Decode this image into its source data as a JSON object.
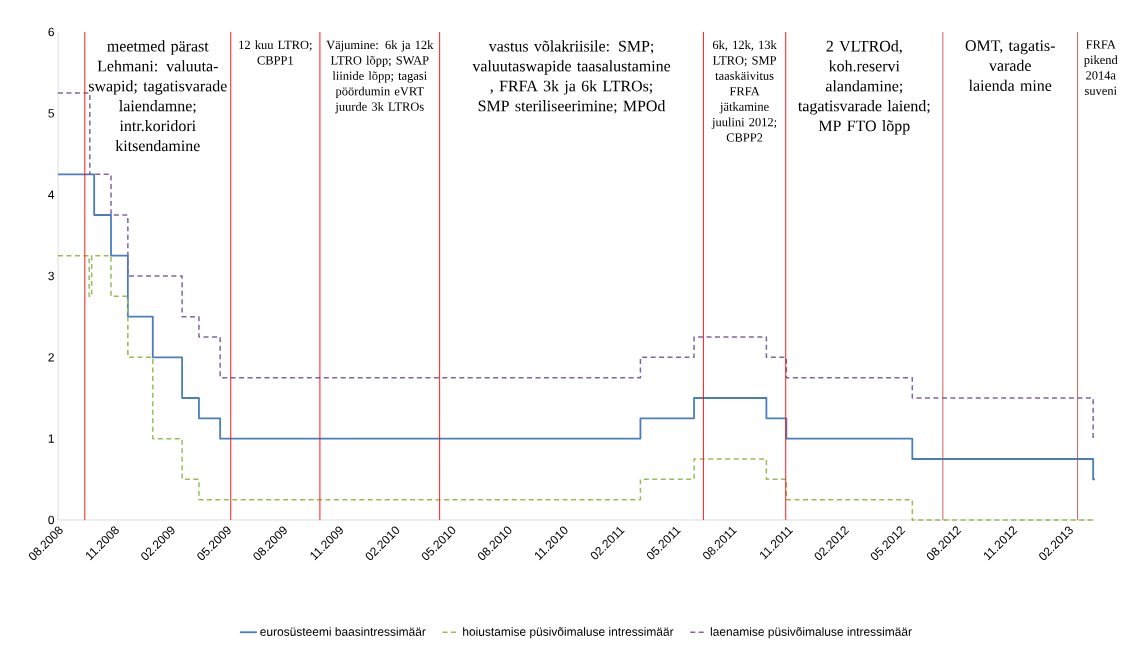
{
  "chart_data": {
    "type": "step",
    "ylim": [
      0,
      6
    ],
    "yticks": [
      0,
      1,
      2,
      3,
      4,
      5,
      6
    ],
    "xlim": [
      "2008-08-01",
      "2013-03-14"
    ],
    "xticks": [
      {
        "value": "2008-08",
        "label": "08.2008"
      },
      {
        "value": "2008-11",
        "label": "11.2008"
      },
      {
        "value": "2009-02",
        "label": "02.2009"
      },
      {
        "value": "2009-05",
        "label": "05.2009"
      },
      {
        "value": "2009-08",
        "label": "08.2009"
      },
      {
        "value": "2009-11",
        "label": "11.2009"
      },
      {
        "value": "2010-02",
        "label": "02.2010"
      },
      {
        "value": "2010-05",
        "label": "05.2010"
      },
      {
        "value": "2010-08",
        "label": "08.2010"
      },
      {
        "value": "2010-11",
        "label": "11.2010"
      },
      {
        "value": "2011-02",
        "label": "02.2011"
      },
      {
        "value": "2011-05",
        "label": "05.2011"
      },
      {
        "value": "2011-08",
        "label": "08.2011"
      },
      {
        "value": "2011-11",
        "label": "11.2011"
      },
      {
        "value": "2012-02",
        "label": "02.2012"
      },
      {
        "value": "2012-05",
        "label": "05.2012"
      },
      {
        "value": "2012-08",
        "label": "08.2012"
      },
      {
        "value": "2012-11",
        "label": "11.2012"
      },
      {
        "value": "2013-02",
        "label": "02.2013"
      }
    ],
    "legend": "bottom",
    "series": [
      {
        "name": "eurosüsteemi baasintressimäär",
        "color": "#4a7ebb",
        "line_style": "solid",
        "x": [
          "2008-08-01",
          "2008-09-29",
          "2008-10-26",
          "2008-11-23",
          "2009-01-03",
          "2009-02-20",
          "2009-03-17",
          "2009-04-21",
          "2011-03-05",
          "2011-06-01",
          "2011-09-27",
          "2011-10-29",
          "2012-05-21",
          "2013-03-11",
          "2013-03-14"
        ],
        "values": [
          4.25,
          3.75,
          3.25,
          2.5,
          2.0,
          1.5,
          1.25,
          1.0,
          1.25,
          1.5,
          1.25,
          1.0,
          0.75,
          0.5,
          0.5
        ]
      },
      {
        "name": "hoiustamise püsivõimaluse intressimäär",
        "color": "#9bbb59",
        "line_style": "dashed",
        "x": [
          "2008-08-01",
          "2008-09-21",
          "2008-09-25",
          "2008-10-26",
          "2008-11-23",
          "2009-01-03",
          "2009-02-20",
          "2009-03-17",
          "2011-03-05",
          "2011-06-01",
          "2011-09-27",
          "2011-10-29",
          "2012-05-21",
          "2013-03-14"
        ],
        "values": [
          3.25,
          2.75,
          3.25,
          2.75,
          2.0,
          1.0,
          0.5,
          0.25,
          0.5,
          0.75,
          0.5,
          0.25,
          0.0,
          0.0
        ]
      },
      {
        "name": "laenamise püsivõimaluse intressimäär",
        "color": "#8064a2",
        "line_style": "dashed",
        "x": [
          "2008-08-01",
          "2008-09-22",
          "2008-10-26",
          "2008-11-23",
          "2009-02-20",
          "2009-03-17",
          "2009-04-21",
          "2011-03-05",
          "2011-06-01",
          "2011-09-27",
          "2011-10-29",
          "2012-05-21",
          "2013-03-11",
          "2013-03-14"
        ],
        "values": [
          5.25,
          4.25,
          3.75,
          3.0,
          2.5,
          2.25,
          1.75,
          2.0,
          2.25,
          2.0,
          1.75,
          1.5,
          1.0,
          1.0
        ]
      }
    ],
    "ref_lines": [
      {
        "axis": "x",
        "value": "2008-09-14",
        "color": "#ff0000",
        "label": "meetmed pärast Lehmani: valuuta-swapid; tagatisvarade laiendamne; intr.koridori kitsendamine"
      },
      {
        "axis": "x",
        "value": "2009-05-08",
        "color": "#ff0000",
        "label": "12 kuu LTRO; CBPP1"
      },
      {
        "axis": "x",
        "value": "2009-10-01",
        "color": "#ff0000",
        "label": "Väjumine: 6k ja 12k LTRO lõpp; SWAP liinide lõpp; tagasi pöördumin eVRT juurde 3k LTROs"
      },
      {
        "axis": "x",
        "value": "2010-04-13",
        "color": "#ff0000",
        "label": "vastus võlakriisile: SMP; valuutaswapide taasalustamine , FRFA 3k ja 6k LTROs; SMP steriliseerimine; MPOd"
      },
      {
        "axis": "x",
        "value": "2011-06-16",
        "color": "#ff0000",
        "label": "6k, 12k, 13k LTRO; SMP taaskäivitus FRFA jätkamine juulini 2012; CBPP2"
      },
      {
        "axis": "x",
        "value": "2011-10-28",
        "color": "#ff0000",
        "label": "2 VLTROd, koh.reservi alandamine; tagatisvarade laiend; MP FTO lõpp"
      },
      {
        "axis": "x",
        "value": "2012-07-10",
        "color": "#c0504d",
        "label": "OMT, tagatis- varade laienda mine"
      },
      {
        "axis": "x",
        "value": "2013-02-16",
        "color": "#c0504d",
        "label": "FRFA pikend 2014a suveni"
      }
    ]
  }
}
